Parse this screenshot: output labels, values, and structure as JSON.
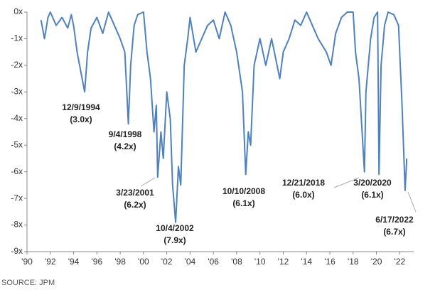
{
  "chart_data": {
    "type": "line",
    "x": [
      1991.2,
      1991.5,
      1991.8,
      1992.0,
      1992.5,
      1993.0,
      1993.5,
      1993.8,
      1994.0,
      1994.3,
      1994.6,
      1994.95,
      1995.2,
      1995.5,
      1996.0,
      1996.5,
      1997.0,
      1997.5,
      1998.0,
      1998.4,
      1998.7,
      1998.9,
      1999.2,
      1999.5,
      2000.0,
      2000.3,
      2000.6,
      2000.9,
      2001.1,
      2001.22,
      2001.5,
      2001.7,
      2002.0,
      2002.3,
      2002.5,
      2002.76,
      2003.0,
      2003.2,
      2003.5,
      2003.8,
      2004.0,
      2004.5,
      2005.0,
      2005.5,
      2006.0,
      2006.5,
      2007.0,
      2007.5,
      2008.0,
      2008.5,
      2008.78,
      2009.0,
      2009.2,
      2009.5,
      2010.0,
      2010.5,
      2011.0,
      2011.7,
      2012.0,
      2012.5,
      2013.0,
      2013.5,
      2014.0,
      2014.5,
      2015.0,
      2015.7,
      2016.1,
      2016.5,
      2017.0,
      2017.5,
      2018.0,
      2018.2,
      2018.5,
      2018.97,
      2019.1,
      2019.5,
      2019.8,
      2020.1,
      2020.22,
      2020.4,
      2020.7,
      2021.0,
      2021.5,
      2021.9,
      2022.0,
      2022.2,
      2022.46,
      2022.6
    ],
    "series": [
      {
        "color": "#4f81bd",
        "values": [
          -0.3,
          -1.0,
          -0.2,
          0,
          -0.5,
          -0.2,
          -0.6,
          -0.1,
          -0.5,
          -1.5,
          -2.2,
          -3.0,
          -1.5,
          -0.6,
          -0.2,
          -0.8,
          0,
          -0.5,
          -1.0,
          -1.5,
          -4.2,
          -2.0,
          -0.5,
          -0.1,
          0,
          -1.5,
          -2.5,
          -4.5,
          -3.5,
          -6.2,
          -4.5,
          -5.5,
          -3.0,
          -4.0,
          -6.5,
          -7.9,
          -5.8,
          -6.5,
          -2.0,
          -1.0,
          -0.2,
          -1.5,
          -1.0,
          -0.5,
          -0.3,
          -1.0,
          0,
          -0.5,
          -1.5,
          -3.0,
          -6.1,
          -4.5,
          -5.0,
          -2.0,
          -1.0,
          -2.0,
          -1.0,
          -2.5,
          -1.5,
          -1.0,
          -0.3,
          -0.5,
          0,
          -0.5,
          -1.0,
          -1.5,
          -2.0,
          -0.8,
          -0.2,
          0,
          0,
          -1.5,
          -2.5,
          -6.0,
          -3.0,
          -1.0,
          -0.2,
          0,
          -6.1,
          -2.0,
          -0.5,
          0,
          -0.1,
          -0.5,
          -1.5,
          -3.5,
          -6.7,
          -5.5
        ]
      }
    ],
    "xlim": [
      1990,
      2023.2
    ],
    "ylim": [
      -9,
      0
    ],
    "xticks": [
      {
        "value": 1990,
        "label": "'90"
      },
      {
        "value": 1992,
        "label": "'92"
      },
      {
        "value": 1994,
        "label": "'94"
      },
      {
        "value": 1996,
        "label": "'96"
      },
      {
        "value": 1998,
        "label": "'98"
      },
      {
        "value": 2000,
        "label": "'00"
      },
      {
        "value": 2002,
        "label": "'02"
      },
      {
        "value": 2004,
        "label": "'04"
      },
      {
        "value": 2006,
        "label": "'06"
      },
      {
        "value": 2008,
        "label": "'08"
      },
      {
        "value": 2010,
        "label": "'10"
      },
      {
        "value": 2012,
        "label": "'12"
      },
      {
        "value": 2014,
        "label": "'14"
      },
      {
        "value": 2016,
        "label": "'16"
      },
      {
        "value": 2018,
        "label": "'18"
      },
      {
        "value": 2020,
        "label": "'20"
      },
      {
        "value": 2022,
        "label": "'22"
      }
    ],
    "yticks": [
      {
        "value": 0,
        "label": "0x"
      },
      {
        "value": -1,
        "label": "-1x"
      },
      {
        "value": -2,
        "label": "-2x"
      },
      {
        "value": -3,
        "label": "-3x"
      },
      {
        "value": -4,
        "label": "-4x"
      },
      {
        "value": -5,
        "label": "-5x"
      },
      {
        "value": -6,
        "label": "-6x"
      },
      {
        "value": -7,
        "label": "-7x"
      },
      {
        "value": -8,
        "label": "-8x"
      },
      {
        "value": -9,
        "label": "-9x"
      }
    ],
    "annotations": [
      {
        "date": "12/9/1994",
        "label": "(3.0x)"
      },
      {
        "date": "9/4/1998",
        "label": "(4.2x)"
      },
      {
        "date": "3/23/2001",
        "label": "(6.2x)"
      },
      {
        "date": "10/4/2002",
        "label": "(7.9x)"
      },
      {
        "date": "10/10/2008",
        "label": "(6.1x)"
      },
      {
        "date": "12/21/2018",
        "label": "(6.0x)"
      },
      {
        "date": "3/20/2020",
        "label": "(6.1x)"
      },
      {
        "date": "6/17/2022",
        "label": "(6.7x)"
      }
    ],
    "source": "SOURCE: JPM"
  }
}
